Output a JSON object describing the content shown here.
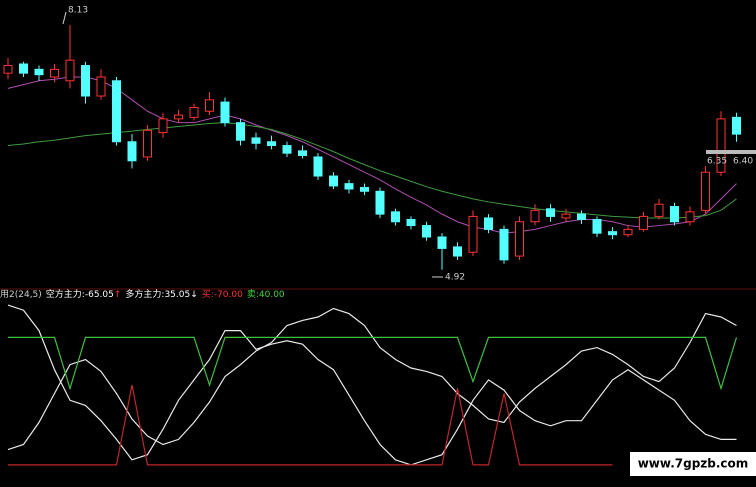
{
  "chart_data": {
    "type": "candlestick",
    "open": [
      7.5,
      7.62,
      7.55,
      7.45,
      7.4,
      7.6,
      7.2,
      7.4,
      6.6,
      6.4,
      6.72,
      6.9,
      6.92,
      7.0,
      7.12,
      6.85,
      6.65,
      6.6,
      6.55,
      6.48,
      6.4,
      6.15,
      6.05,
      6.0,
      5.95,
      5.68,
      5.58,
      5.5,
      5.35,
      5.22,
      5.15,
      5.6,
      5.45,
      5.1,
      5.55,
      5.72,
      5.6,
      5.65,
      5.58,
      5.42,
      5.38,
      5.45,
      5.62,
      5.75,
      5.55,
      5.7,
      6.2,
      6.92
    ],
    "high": [
      7.7,
      7.65,
      7.6,
      7.62,
      8.13,
      7.65,
      7.55,
      7.45,
      6.7,
      6.82,
      6.98,
      7.02,
      7.1,
      7.25,
      7.18,
      6.9,
      6.72,
      6.68,
      6.6,
      6.55,
      6.45,
      6.2,
      6.1,
      6.05,
      6.0,
      5.72,
      5.62,
      5.55,
      5.4,
      5.28,
      5.7,
      5.65,
      5.5,
      5.62,
      5.78,
      5.78,
      5.72,
      5.7,
      5.62,
      5.48,
      5.5,
      5.68,
      5.85,
      5.8,
      5.75,
      6.28,
      7.0,
      6.98
    ],
    "low": [
      7.42,
      7.45,
      7.4,
      7.38,
      7.3,
      7.1,
      7.15,
      6.55,
      6.25,
      6.35,
      6.65,
      6.85,
      6.88,
      6.95,
      6.8,
      6.55,
      6.5,
      6.5,
      6.4,
      6.38,
      6.1,
      5.98,
      5.92,
      5.9,
      5.6,
      5.5,
      5.45,
      5.3,
      4.92,
      5.05,
      5.1,
      5.4,
      5.0,
      5.05,
      5.5,
      5.55,
      5.55,
      5.52,
      5.35,
      5.32,
      5.35,
      5.42,
      5.58,
      5.5,
      5.5,
      5.65,
      6.15,
      6.6
    ],
    "close": [
      7.6,
      7.5,
      7.48,
      7.55,
      7.67,
      7.2,
      7.45,
      6.6,
      6.35,
      6.75,
      6.9,
      6.95,
      7.05,
      7.15,
      6.85,
      6.62,
      6.58,
      6.55,
      6.45,
      6.42,
      6.15,
      6.02,
      5.98,
      5.95,
      5.65,
      5.55,
      5.5,
      5.35,
      5.2,
      5.1,
      5.62,
      5.45,
      5.05,
      5.55,
      5.7,
      5.62,
      5.65,
      5.58,
      5.4,
      5.38,
      5.45,
      5.62,
      5.78,
      5.55,
      5.68,
      6.2,
      6.9,
      6.7
    ],
    "up_color": "#ff3232",
    "down_color": "#54ffff",
    "ylim": [
      4.72,
      8.46
    ],
    "moving_averages": [
      {
        "color": "#b04fb0",
        "values": [
          7.3,
          7.35,
          7.4,
          7.42,
          7.45,
          7.45,
          7.4,
          7.3,
          7.15,
          7.0,
          6.9,
          6.85,
          6.85,
          6.9,
          6.95,
          6.9,
          6.82,
          6.75,
          6.68,
          6.6,
          6.5,
          6.4,
          6.3,
          6.2,
          6.1,
          5.98,
          5.87,
          5.77,
          5.65,
          5.55,
          5.48,
          5.45,
          5.4,
          5.42,
          5.45,
          5.5,
          5.55,
          5.58,
          5.58,
          5.55,
          5.5,
          5.48,
          5.5,
          5.52,
          5.55,
          5.65,
          5.85,
          6.05
        ]
      },
      {
        "color": "#3f9a3f",
        "values": [
          6.55,
          6.57,
          6.6,
          6.62,
          6.65,
          6.68,
          6.7,
          6.72,
          6.74,
          6.76,
          6.78,
          6.8,
          6.82,
          6.84,
          6.85,
          6.83,
          6.8,
          6.76,
          6.7,
          6.63,
          6.55,
          6.47,
          6.38,
          6.3,
          6.22,
          6.15,
          6.08,
          6.01,
          5.95,
          5.9,
          5.85,
          5.81,
          5.78,
          5.75,
          5.72,
          5.7,
          5.68,
          5.66,
          5.64,
          5.62,
          5.61,
          5.6,
          5.6,
          5.6,
          5.61,
          5.63,
          5.7,
          5.85
        ]
      }
    ],
    "annotations": [
      "8.13",
      "4.92",
      "6.35",
      "6.40"
    ],
    "indicator": {
      "title": "用2(24,5)",
      "ylim": [
        0,
        100
      ],
      "items": [
        {
          "label": "空方主力:",
          "value": -65.05,
          "arrow": "↑",
          "color": "#ffffff",
          "arrow_color": "#ff3232"
        },
        {
          "label": "多方主力:",
          "value": 35.05,
          "arrow": "↓",
          "color": "#ffffff",
          "arrow_color": "#ffffff"
        },
        {
          "label": "买:",
          "value": -70,
          "value_label": "-70.00",
          "color": "#ff3232"
        },
        {
          "label": "卖:",
          "value": 40,
          "value_label": "40.00",
          "color": "#3fd23f"
        }
      ],
      "series": [
        {
          "color": "#e8e8e8",
          "values": [
            97,
            94,
            82,
            59,
            41,
            38,
            29,
            18,
            6,
            9,
            24,
            41,
            53,
            65,
            82,
            82,
            71,
            74,
            76,
            74,
            65,
            59,
            44,
            29,
            15,
            6,
            3,
            6,
            9,
            24,
            41,
            53,
            47,
            35,
            29,
            26,
            29,
            29,
            41,
            53,
            59,
            53,
            47,
            41,
            29,
            21,
            18,
            18
          ]
        },
        {
          "color": "#e8e8e8",
          "values": [
            12,
            15,
            28,
            45,
            62,
            65,
            58,
            45,
            30,
            20,
            15,
            18,
            28,
            40,
            55,
            62,
            70,
            75,
            85,
            88,
            90,
            95,
            92,
            85,
            72,
            65,
            60,
            58,
            55,
            45,
            38,
            30,
            28,
            40,
            48,
            55,
            62,
            70,
            72,
            68,
            62,
            55,
            52,
            60,
            75,
            92,
            90,
            85
          ]
        },
        {
          "color": "#3fbf3f",
          "values": [
            78,
            78,
            78,
            78,
            48,
            78,
            78,
            78,
            78,
            78,
            78,
            78,
            78,
            50,
            78,
            78,
            78,
            78,
            78,
            78,
            78,
            78,
            78,
            78,
            78,
            78,
            78,
            78,
            78,
            78,
            52,
            78,
            78,
            78,
            78,
            78,
            78,
            78,
            78,
            78,
            78,
            78,
            78,
            78,
            78,
            78,
            48,
            78
          ]
        },
        {
          "color": "#c0262a",
          "values": [
            3,
            3,
            3,
            3,
            3,
            3,
            3,
            3,
            50,
            3,
            3,
            3,
            3,
            3,
            3,
            3,
            3,
            3,
            3,
            3,
            3,
            3,
            3,
            3,
            3,
            3,
            3,
            3,
            3,
            48,
            3,
            3,
            45,
            3,
            3,
            3,
            3,
            3,
            3,
            3,
            null,
            null,
            null,
            null,
            null,
            null,
            null,
            null
          ]
        }
      ]
    },
    "watermark": "www.7gpzb.com"
  }
}
